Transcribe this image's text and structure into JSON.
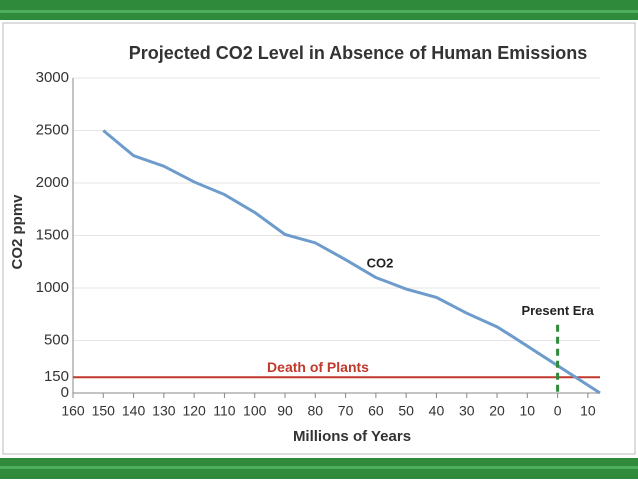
{
  "chart_data": {
    "type": "line",
    "title": "Projected CO2 Level in Absence of Human Emissions",
    "x_label": "Millions of Years",
    "y_label": "CO2 ppmv",
    "x": [
      -150,
      -140,
      -130,
      -120,
      -110,
      -100,
      -90,
      -80,
      -70,
      -60,
      -50,
      -40,
      -30,
      -20,
      -15,
      14
    ],
    "series": [
      {
        "name": "CO2",
        "color": "#6d9ccc",
        "values": [
          2500,
          2260,
          2160,
          2010,
          1890,
          1720,
          1510,
          1430,
          1270,
          1100,
          990,
          910,
          760,
          630,
          540,
          0
        ]
      }
    ],
    "xlim": [
      -160,
      14
    ],
    "xticks": [
      {
        "value": -160,
        "label": "160"
      },
      {
        "value": -150,
        "label": "150"
      },
      {
        "value": -140,
        "label": "140"
      },
      {
        "value": -130,
        "label": "130"
      },
      {
        "value": -120,
        "label": "120"
      },
      {
        "value": -110,
        "label": "110"
      },
      {
        "value": -100,
        "label": "100"
      },
      {
        "value": -90,
        "label": "90"
      },
      {
        "value": -80,
        "label": "80"
      },
      {
        "value": -70,
        "label": "70"
      },
      {
        "value": -60,
        "label": "60"
      },
      {
        "value": -50,
        "label": "50"
      },
      {
        "value": -40,
        "label": "40"
      },
      {
        "value": -30,
        "label": "30"
      },
      {
        "value": -20,
        "label": "20"
      },
      {
        "value": -10,
        "label": "10"
      },
      0,
      10
    ],
    "ylim": [
      0,
      3000
    ],
    "yticks": [
      0,
      500,
      1000,
      1500,
      2000,
      2500,
      3000
    ],
    "grid": true,
    "hline": {
      "y": 150,
      "label": "Death of Plants",
      "color": "#c0392b"
    },
    "vline": {
      "x": 0,
      "label": "Present Era",
      "color": "#2e8b3a",
      "y_top": 650
    }
  }
}
